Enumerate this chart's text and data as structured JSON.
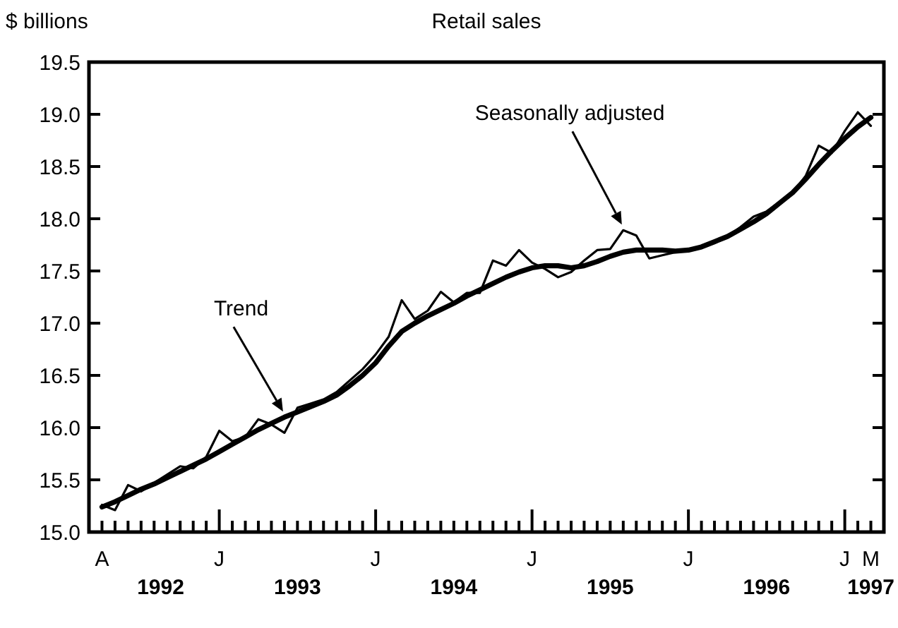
{
  "chart_data": {
    "type": "line",
    "title": "Retail sales",
    "ylabel": "$ billions",
    "categories": [
      "A",
      null,
      null,
      null,
      null,
      null,
      null,
      null,
      null,
      "J",
      null,
      null,
      null,
      null,
      null,
      null,
      null,
      null,
      null,
      null,
      null,
      "J",
      null,
      null,
      null,
      null,
      null,
      null,
      null,
      null,
      null,
      null,
      null,
      "J",
      null,
      null,
      null,
      null,
      null,
      null,
      null,
      null,
      null,
      null,
      null,
      "J",
      null,
      null,
      null,
      null,
      null,
      null,
      null,
      null,
      null,
      null,
      null,
      "J",
      null,
      "M"
    ],
    "series": [
      {
        "color": "#000000",
        "values": [
          15.26,
          15.21,
          15.45,
          15.39,
          15.47,
          15.55,
          15.63,
          15.61,
          15.72,
          15.97,
          15.87,
          15.91,
          16.08,
          16.03,
          15.95,
          16.19,
          16.23,
          16.27,
          16.34,
          16.45,
          16.56,
          16.7,
          16.87,
          17.22,
          17.04,
          17.12,
          17.3,
          17.2,
          17.29,
          17.29,
          17.6,
          17.55,
          17.7,
          17.58,
          17.52,
          17.44,
          17.49,
          17.6,
          17.7,
          17.71,
          17.89,
          17.84,
          17.62,
          17.65,
          17.68,
          17.7,
          17.73,
          17.78,
          17.83,
          17.92,
          18.02,
          18.07,
          18.16,
          18.25,
          18.41,
          18.7,
          18.63,
          18.84,
          19.02,
          18.89
        ]
      },
      {
        "color": "#000000",
        "values": [
          15.24,
          15.29,
          15.35,
          15.41,
          15.46,
          15.52,
          15.58,
          15.64,
          15.7,
          15.77,
          15.84,
          15.91,
          15.98,
          16.04,
          16.1,
          16.15,
          16.2,
          16.25,
          16.31,
          16.4,
          16.5,
          16.62,
          16.78,
          16.92,
          17.0,
          17.07,
          17.13,
          17.19,
          17.26,
          17.32,
          17.38,
          17.44,
          17.49,
          17.53,
          17.55,
          17.55,
          17.53,
          17.55,
          17.59,
          17.64,
          17.68,
          17.7,
          17.7,
          17.7,
          17.69,
          17.7,
          17.73,
          17.78,
          17.83,
          17.9,
          17.97,
          18.05,
          18.15,
          18.25,
          18.38,
          18.52,
          18.65,
          18.77,
          18.88,
          18.97
        ]
      }
    ],
    "annotations": [
      "1992",
      "1993",
      "1994",
      "1995",
      "1996",
      "1997",
      "Seasonally adjusted",
      "Trend"
    ],
    "ylim": [
      15,
      19.5
    ],
    "yticks": [
      {
        "value": 15,
        "label": "15.0"
      },
      {
        "value": 15.5,
        "label": "15.5"
      },
      {
        "value": 16,
        "label": "16.0"
      },
      {
        "value": 16.5,
        "label": "16.5"
      },
      {
        "value": 17,
        "label": "17.0"
      },
      {
        "value": 17.5,
        "label": "17.5"
      },
      {
        "value": 18,
        "label": "18.0"
      },
      {
        "value": 18.5,
        "label": "18.5"
      },
      {
        "value": 19,
        "label": "19.0"
      },
      {
        "value": 19.5,
        "label": "19.5"
      }
    ],
    "grid": false,
    "marker": "none",
    "line_style": "solid"
  }
}
